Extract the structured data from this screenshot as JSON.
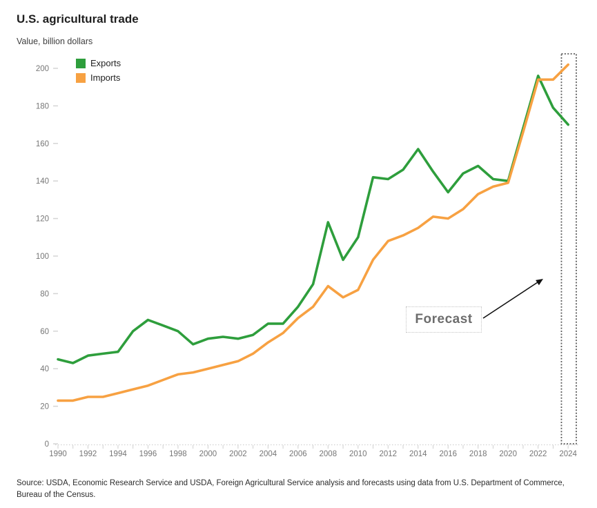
{
  "header": {
    "title": "U.S. agricultural trade",
    "subtitle": "Value, billion dollars"
  },
  "legend": {
    "items": [
      {
        "label": "Exports",
        "color": "#2E9E3C"
      },
      {
        "label": "Imports",
        "color": "#F7A142"
      }
    ]
  },
  "forecast": {
    "label": "Forecast"
  },
  "source": {
    "text": "Source: USDA, Economic Research Service and USDA, Foreign Agricultural Service analysis and forecasts using data from U.S. Department of Commerce, Bureau of the Census."
  },
  "chart_data": {
    "type": "line",
    "title": "U.S. agricultural trade",
    "ylabel": "Value, billion dollars",
    "xlabel": "",
    "grid": false,
    "legend_position": "top-left",
    "ylim": [
      0,
      200
    ],
    "ytick_step": 20,
    "x": [
      1990,
      1991,
      1992,
      1993,
      1994,
      1995,
      1996,
      1997,
      1998,
      1999,
      2000,
      2001,
      2002,
      2003,
      2004,
      2005,
      2006,
      2007,
      2008,
      2009,
      2010,
      2011,
      2012,
      2013,
      2014,
      2015,
      2016,
      2017,
      2018,
      2019,
      2020,
      2021,
      2022,
      2023,
      2024
    ],
    "xtick_labels": [
      "1990",
      "1992",
      "1994",
      "1996",
      "1998",
      "2000",
      "2002",
      "2004",
      "2006",
      "2008",
      "2010",
      "2012",
      "2014",
      "2016",
      "2018",
      "2020",
      "2022",
      "2024"
    ],
    "series": [
      {
        "name": "Exports",
        "color": "#2E9E3C",
        "values": [
          45,
          43,
          47,
          48,
          49,
          60,
          66,
          63,
          60,
          53,
          56,
          57,
          56,
          58,
          64,
          64,
          73,
          85,
          118,
          98,
          110,
          142,
          141,
          146,
          157,
          145,
          134,
          144,
          148,
          141,
          140,
          168,
          196,
          179,
          170
        ]
      },
      {
        "name": "Imports",
        "color": "#F7A142",
        "values": [
          23,
          23,
          25,
          25,
          27,
          29,
          31,
          34,
          37,
          38,
          40,
          42,
          44,
          48,
          54,
          59,
          67,
          73,
          84,
          78,
          82,
          98,
          108,
          111,
          115,
          121,
          120,
          125,
          133,
          137,
          139,
          166,
          194,
          194,
          202
        ]
      }
    ],
    "forecast_region": {
      "label": "Forecast",
      "years": [
        2024
      ]
    }
  }
}
